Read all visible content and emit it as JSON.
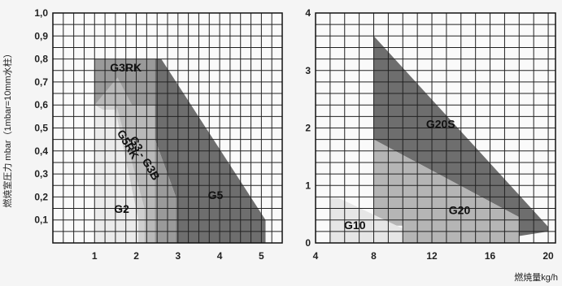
{
  "chart_data": [
    {
      "type": "area",
      "ylabel": "燃焼室圧力 mbar（1mbar=10mm水柱）",
      "xlim": [
        0,
        5.5
      ],
      "ylim": [
        0,
        1.0
      ],
      "x_ticks": [
        "1",
        "2",
        "3",
        "4",
        "5"
      ],
      "y_ticks": [
        "0,1",
        "0,2",
        "0,3",
        "0,4",
        "0,5",
        "0,6",
        "0,7",
        "0,8",
        "0,9",
        "1,0"
      ],
      "grid": true,
      "regions": [
        {
          "name": "G5",
          "color": "#6e6e6e",
          "points": [
            [
              2.45,
              0.8
            ],
            [
              2.6,
              0.8
            ],
            [
              5.1,
              0.1
            ],
            [
              5.1,
              0
            ],
            [
              2.95,
              0
            ],
            [
              2.95,
              0.2
            ],
            [
              2.45,
              0.45
            ]
          ]
        },
        {
          "name": "G3RK",
          "color": "#9a9a9a",
          "points": [
            [
              1.0,
              0.8
            ],
            [
              2.45,
              0.8
            ],
            [
              2.45,
              0.45
            ],
            [
              2.95,
              0.2
            ],
            [
              2.95,
              0
            ],
            [
              1.0,
              0
            ]
          ]
        },
        {
          "name": "G3 - G3B",
          "color": "#b9b9b9",
          "points": [
            [
              1.55,
              0.72
            ],
            [
              1.9,
              0.6
            ],
            [
              2.45,
              0.6
            ],
            [
              2.45,
              0
            ],
            [
              1.0,
              0
            ],
            [
              1.0,
              0.6
            ]
          ]
        },
        {
          "name": "G5RK",
          "color": "#cfcfcf",
          "points": [
            [
              1.5,
              0.6
            ],
            [
              1.55,
              0.58
            ],
            [
              2.2,
              0.15
            ],
            [
              2.2,
              0
            ],
            [
              1.0,
              0
            ],
            [
              1.0,
              0.6
            ]
          ]
        },
        {
          "name": "G2",
          "color": "#ebebeb",
          "points": [
            [
              1.0,
              0.6
            ],
            [
              1.2,
              0.58
            ],
            [
              1.5,
              0.58
            ],
            [
              2.05,
              0.1
            ],
            [
              2.05,
              0
            ],
            [
              1.0,
              0
            ]
          ]
        }
      ],
      "labels": [
        {
          "text": "G3RK",
          "x": 1.75,
          "y": 0.745
        },
        {
          "text": "G5RK",
          "x": 1.72,
          "y": 0.42,
          "rotate": 60
        },
        {
          "text": "G3 - G3B",
          "x": 2.12,
          "y": 0.36,
          "rotate": 60
        },
        {
          "text": "G5",
          "x": 3.9,
          "y": 0.19
        },
        {
          "text": "G2",
          "x": 1.65,
          "y": 0.13
        }
      ]
    },
    {
      "type": "area",
      "xlabel": "燃焼量kg/h",
      "xlim": [
        4,
        20.5
      ],
      "ylim": [
        0,
        4
      ],
      "x_ticks": [
        "4",
        "8",
        "12",
        "16",
        "20"
      ],
      "y_ticks": [
        "0",
        "1",
        "2",
        "3",
        "4"
      ],
      "grid": true,
      "regions": [
        {
          "name": "G20S",
          "color": "#6e6e6e",
          "points": [
            [
              8,
              3.6
            ],
            [
              8,
              1.8
            ],
            [
              18,
              0.45
            ],
            [
              18,
              0.12
            ],
            [
              20,
              0.2
            ],
            [
              20,
              0.28
            ]
          ]
        },
        {
          "name": "G20",
          "color": "#b5b5b5",
          "points": [
            [
              8,
              1.8
            ],
            [
              18,
              0.45
            ],
            [
              18,
              0
            ],
            [
              10,
              0
            ],
            [
              10,
              0.3
            ],
            [
              8,
              0.3
            ]
          ]
        },
        {
          "name": "G10",
          "color": "#e6e6e6",
          "points": [
            [
              5,
              0.78
            ],
            [
              5.6,
              0.78
            ],
            [
              10,
              0.25
            ],
            [
              10,
              0
            ],
            [
              5,
              0
            ]
          ]
        }
      ],
      "labels": [
        {
          "text": "G20S",
          "x": 12.6,
          "y": 2.0
        },
        {
          "text": "G20",
          "x": 13.9,
          "y": 0.5
        },
        {
          "text": "G10",
          "x": 6.7,
          "y": 0.24
        }
      ]
    }
  ]
}
